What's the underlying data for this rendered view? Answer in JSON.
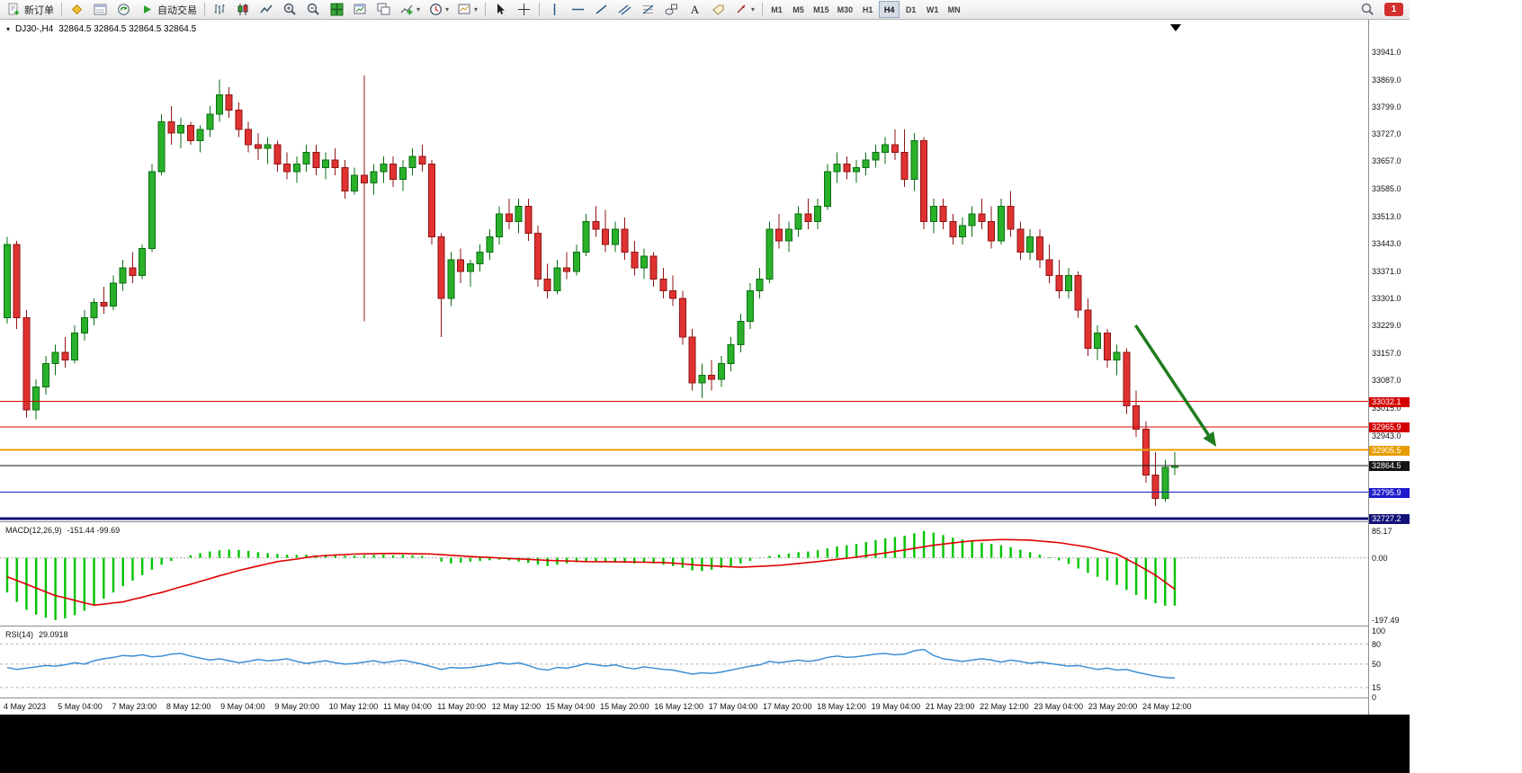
{
  "toolbar": {
    "new_order": "新订单",
    "autotrade": "自动交易",
    "timeframes": [
      "M1",
      "M5",
      "M15",
      "M30",
      "H1",
      "H4",
      "D1",
      "W1",
      "MN"
    ],
    "active_timeframe": "H4",
    "notification_count": "1",
    "icons": [
      "new-order",
      "market-watch",
      "data-window",
      "navigator",
      "autotrade",
      "bar-chart",
      "candle-chart",
      "line-chart",
      "zoom-in",
      "zoom-out",
      "tile-windows",
      "new-chart",
      "profiles",
      "indicators",
      "periods",
      "templates",
      "cursor",
      "crosshair",
      "vertical-line",
      "horizontal-line",
      "trendline",
      "channel",
      "fibonacci",
      "shapes",
      "text",
      "text-label",
      "arrows",
      "search",
      "notifications"
    ]
  },
  "chart": {
    "title_symbol": "DJ30-,H4",
    "title_ohlc": "32864.5 32864.5 32864.5 32864.5"
  },
  "colors": {
    "bull": "#29b129",
    "bull_stroke": "#0c6e14",
    "bear": "#e03232",
    "bear_stroke": "#8f1414",
    "macd_hist": "#00c400",
    "macd_signal": "#e00000",
    "rsi_line": "#3d8fd6"
  },
  "chart_data": [
    {
      "type": "candlestick",
      "symbol_timeframe": "DJ30-,H4",
      "current_price": 32864.5,
      "price_axis": {
        "min": 32720,
        "max": 34025,
        "ticks": [
          33941.0,
          33869.0,
          33799.0,
          33727.0,
          33657.0,
          33585.0,
          33513.0,
          33443.0,
          33371.0,
          33301.0,
          33229.0,
          33157.0,
          33087.0,
          33015.0,
          32943.0
        ]
      },
      "hlines": [
        {
          "price": 33032.1,
          "color": "#d40000",
          "width": 1
        },
        {
          "price": 32965.9,
          "color": "#d40000",
          "width": 1
        },
        {
          "price": 32905.5,
          "color": "#e89c00",
          "width": 2
        },
        {
          "price": 32864.5,
          "color": "#151515",
          "width": 1
        },
        {
          "price": 32795.9,
          "color": "#1c1ccc",
          "width": 1
        },
        {
          "price": 32727.2,
          "color": "#12127a",
          "width": 3
        }
      ],
      "arrow": {
        "x1_frac": 0.83,
        "y1_price": 33230,
        "x2_frac": 0.889,
        "y2_price": 32914,
        "color": "#1e7d1e"
      },
      "x_labels": [
        "4 May 2023",
        "5 May 04:00",
        "7 May 23:00",
        "8 May 12:00",
        "9 May 04:00",
        "9 May 20:00",
        "10 May 12:00",
        "11 May 04:00",
        "11 May 20:00",
        "12 May 12:00",
        "15 May 04:00",
        "15 May 20:00",
        "16 May 12:00",
        "17 May 04:00",
        "17 May 20:00",
        "18 May 12:00",
        "19 May 04:00",
        "21 May 23:00",
        "22 May 12:00",
        "23 May 04:00",
        "23 May 20:00",
        "24 May 12:00"
      ],
      "candles": [
        [
          33250,
          33460,
          33235,
          33440
        ],
        [
          33440,
          33450,
          33220,
          33250
        ],
        [
          33250,
          33270,
          32990,
          33010
        ],
        [
          33010,
          33090,
          32985,
          33070
        ],
        [
          33070,
          33150,
          33050,
          33130
        ],
        [
          33130,
          33180,
          33100,
          33160
        ],
        [
          33160,
          33200,
          33120,
          33140
        ],
        [
          33140,
          33230,
          33130,
          33210
        ],
        [
          33210,
          33270,
          33190,
          33250
        ],
        [
          33250,
          33300,
          33230,
          33290
        ],
        [
          33290,
          33330,
          33260,
          33280
        ],
        [
          33280,
          33360,
          33270,
          33340
        ],
        [
          33340,
          33400,
          33320,
          33380
        ],
        [
          33380,
          33420,
          33340,
          33360
        ],
        [
          33360,
          33440,
          33350,
          33430
        ],
        [
          33430,
          33650,
          33420,
          33630
        ],
        [
          33630,
          33780,
          33620,
          33760
        ],
        [
          33760,
          33800,
          33700,
          33730
        ],
        [
          33730,
          33770,
          33690,
          33750
        ],
        [
          33750,
          33760,
          33700,
          33710
        ],
        [
          33710,
          33750,
          33680,
          33740
        ],
        [
          33740,
          33800,
          33720,
          33780
        ],
        [
          33780,
          33869,
          33760,
          33830
        ],
        [
          33830,
          33850,
          33770,
          33790
        ],
        [
          33790,
          33810,
          33720,
          33740
        ],
        [
          33740,
          33760,
          33680,
          33700
        ],
        [
          33700,
          33730,
          33660,
          33690
        ],
        [
          33690,
          33720,
          33650,
          33700
        ],
        [
          33700,
          33710,
          33630,
          33650
        ],
        [
          33650,
          33680,
          33610,
          33630
        ],
        [
          33630,
          33670,
          33600,
          33650
        ],
        [
          33650,
          33700,
          33630,
          33680
        ],
        [
          33680,
          33700,
          33620,
          33640
        ],
        [
          33640,
          33680,
          33610,
          33660
        ],
        [
          33660,
          33690,
          33620,
          33640
        ],
        [
          33640,
          33660,
          33560,
          33580
        ],
        [
          33580,
          33640,
          33570,
          33620
        ],
        [
          33620,
          33880,
          33240,
          33600
        ],
        [
          33600,
          33650,
          33570,
          33630
        ],
        [
          33630,
          33670,
          33600,
          33650
        ],
        [
          33650,
          33670,
          33590,
          33610
        ],
        [
          33610,
          33660,
          33580,
          33640
        ],
        [
          33640,
          33690,
          33620,
          33670
        ],
        [
          33670,
          33700,
          33630,
          33650
        ],
        [
          33650,
          33660,
          33440,
          33460
        ],
        [
          33460,
          33470,
          33200,
          33300
        ],
        [
          33300,
          33420,
          33280,
          33400
        ],
        [
          33400,
          33430,
          33340,
          33370
        ],
        [
          33370,
          33400,
          33330,
          33390
        ],
        [
          33390,
          33440,
          33370,
          33420
        ],
        [
          33420,
          33480,
          33400,
          33460
        ],
        [
          33460,
          33540,
          33440,
          33520
        ],
        [
          33520,
          33560,
          33480,
          33500
        ],
        [
          33500,
          33560,
          33470,
          33540
        ],
        [
          33540,
          33560,
          33450,
          33470
        ],
        [
          33470,
          33490,
          33330,
          33350
        ],
        [
          33350,
          33390,
          33300,
          33320
        ],
        [
          33320,
          33400,
          33310,
          33380
        ],
        [
          33380,
          33420,
          33350,
          33370
        ],
        [
          33370,
          33440,
          33360,
          33420
        ],
        [
          33420,
          33520,
          33410,
          33500
        ],
        [
          33500,
          33540,
          33460,
          33480
        ],
        [
          33480,
          33530,
          33420,
          33440
        ],
        [
          33440,
          33500,
          33420,
          33480
        ],
        [
          33480,
          33510,
          33400,
          33420
        ],
        [
          33420,
          33450,
          33360,
          33380
        ],
        [
          33380,
          33430,
          33350,
          33410
        ],
        [
          33410,
          33420,
          33330,
          33350
        ],
        [
          33350,
          33380,
          33300,
          33320
        ],
        [
          33320,
          33360,
          33280,
          33300
        ],
        [
          33300,
          33320,
          33180,
          33200
        ],
        [
          33200,
          33220,
          33060,
          33080
        ],
        [
          33080,
          33130,
          33040,
          33100
        ],
        [
          33100,
          33140,
          33060,
          33090
        ],
        [
          33090,
          33150,
          33070,
          33130
        ],
        [
          33130,
          33200,
          33110,
          33180
        ],
        [
          33180,
          33260,
          33160,
          33240
        ],
        [
          33240,
          33340,
          33220,
          33320
        ],
        [
          33320,
          33380,
          33300,
          33350
        ],
        [
          33350,
          33500,
          33340,
          33480
        ],
        [
          33480,
          33520,
          33430,
          33450
        ],
        [
          33450,
          33500,
          33420,
          33480
        ],
        [
          33480,
          33540,
          33460,
          33520
        ],
        [
          33520,
          33560,
          33480,
          33500
        ],
        [
          33500,
          33560,
          33480,
          33540
        ],
        [
          33540,
          33650,
          33530,
          33630
        ],
        [
          33630,
          33680,
          33600,
          33650
        ],
        [
          33650,
          33670,
          33610,
          33630
        ],
        [
          33630,
          33660,
          33600,
          33640
        ],
        [
          33640,
          33680,
          33620,
          33660
        ],
        [
          33660,
          33700,
          33640,
          33680
        ],
        [
          33680,
          33720,
          33650,
          33700
        ],
        [
          33700,
          33740,
          33660,
          33680
        ],
        [
          33680,
          33740,
          33590,
          33610
        ],
        [
          33610,
          33730,
          33580,
          33710
        ],
        [
          33710,
          33720,
          33480,
          33500
        ],
        [
          33500,
          33560,
          33470,
          33540
        ],
        [
          33540,
          33560,
          33480,
          33500
        ],
        [
          33500,
          33520,
          33440,
          33460
        ],
        [
          33460,
          33510,
          33440,
          33490
        ],
        [
          33490,
          33540,
          33460,
          33520
        ],
        [
          33520,
          33560,
          33480,
          33500
        ],
        [
          33500,
          33540,
          33430,
          33450
        ],
        [
          33450,
          33560,
          33440,
          33540
        ],
        [
          33540,
          33580,
          33460,
          33480
        ],
        [
          33480,
          33500,
          33400,
          33420
        ],
        [
          33420,
          33480,
          33400,
          33460
        ],
        [
          33460,
          33480,
          33380,
          33400
        ],
        [
          33400,
          33440,
          33340,
          33360
        ],
        [
          33360,
          33400,
          33300,
          33320
        ],
        [
          33320,
          33380,
          33300,
          33360
        ],
        [
          33360,
          33370,
          33250,
          33270
        ],
        [
          33270,
          33300,
          33150,
          33170
        ],
        [
          33170,
          33230,
          33140,
          33210
        ],
        [
          33210,
          33220,
          33120,
          33140
        ],
        [
          33140,
          33180,
          33100,
          33160
        ],
        [
          33160,
          33170,
          33000,
          33020
        ],
        [
          33020,
          33060,
          32940,
          32960
        ],
        [
          32960,
          32980,
          32820,
          32840
        ],
        [
          32840,
          32900,
          32760,
          32780
        ],
        [
          32780,
          32880,
          32770,
          32860
        ],
        [
          32860,
          32900,
          32840,
          32864.5
        ]
      ]
    },
    {
      "type": "bar+line",
      "name": "MACD(12,26,9)",
      "current_values": "-151.44 -99.69",
      "scale_ticks": [
        85.17,
        0,
        -197.49
      ],
      "range": {
        "min": -215,
        "max": 110
      },
      "histogram": [
        -110,
        -140,
        -165,
        -180,
        -190,
        -197.49,
        -192,
        -182,
        -168,
        -150,
        -130,
        -110,
        -90,
        -72,
        -55,
        -38,
        -22,
        -10,
        0,
        8,
        15,
        20,
        24,
        26,
        25,
        22,
        18,
        15,
        12,
        10,
        9,
        10,
        8,
        10,
        9,
        6,
        7,
        8,
        9,
        10,
        8,
        9,
        8,
        6,
        0,
        -12,
        -18,
        -15,
        -12,
        -10,
        -8,
        -6,
        -8,
        -12,
        -16,
        -22,
        -26,
        -22,
        -18,
        -14,
        -10,
        -10,
        -14,
        -14,
        -16,
        -18,
        -14,
        -18,
        -22,
        -26,
        -32,
        -40,
        -42,
        -38,
        -32,
        -26,
        -18,
        -10,
        -2,
        6,
        10,
        14,
        18,
        20,
        24,
        30,
        36,
        40,
        44,
        50,
        56,
        62,
        66,
        70,
        78,
        85.17,
        80,
        72,
        64,
        58,
        52,
        48,
        44,
        40,
        34,
        26,
        18,
        10,
        2,
        -8,
        -20,
        -34,
        -48,
        -60,
        -72,
        -86,
        -102,
        -118,
        -132,
        -144,
        -152,
        -151.44
      ],
      "signal": [
        -60,
        -72,
        -84,
        -96,
        -108,
        -120,
        -127,
        -135,
        -143,
        -150,
        -147,
        -143,
        -140,
        -132,
        -125,
        -117,
        -110,
        -101,
        -92,
        -84,
        -75,
        -66,
        -57,
        -49,
        -40,
        -33,
        -26,
        -19,
        -12,
        -8,
        -4,
        1,
        5,
        7,
        9,
        10,
        12,
        12.5,
        13,
        13.5,
        14,
        13.5,
        13,
        12.5,
        12,
        10,
        8,
        6,
        4,
        2.5,
        1,
        -0.5,
        -2,
        -3.5,
        -5,
        -6.5,
        -8,
        -9,
        -10,
        -11,
        -12,
        -12.3,
        -12.5,
        -12.8,
        -13,
        -13.5,
        -14,
        -14.5,
        -15,
        -17,
        -19,
        -22,
        -24,
        -25.5,
        -27,
        -28.5,
        -30,
        -28.5,
        -27,
        -25.5,
        -24,
        -21,
        -18,
        -15,
        -12,
        -8.5,
        -5,
        -1.5,
        2,
        6.5,
        11,
        15.5,
        20,
        25,
        30,
        35,
        40,
        43.5,
        47,
        50.5,
        54,
        55.3,
        56.7,
        58,
        57.3,
        56.7,
        56,
        53.3,
        50.7,
        48,
        43.3,
        38.7,
        34,
        26.7,
        19.3,
        12,
        -4,
        -20,
        -37.5,
        -55,
        -77,
        -99.69
      ]
    },
    {
      "type": "line",
      "name": "RSI(14)",
      "current_value": "29.0918",
      "scale_ticks": [
        100,
        80,
        50,
        15,
        0
      ],
      "levels": [
        80,
        50,
        15
      ],
      "range": {
        "min": 0,
        "max": 105
      },
      "values": [
        45,
        42,
        44,
        46,
        48,
        47,
        49,
        52,
        50,
        55,
        58,
        60,
        63,
        62,
        64,
        61,
        62,
        65,
        66,
        62,
        59,
        56,
        58,
        55,
        52,
        54,
        57,
        55,
        56,
        58,
        54,
        51,
        53,
        55,
        52,
        50,
        51,
        53,
        55,
        52,
        54,
        56,
        53,
        50,
        46,
        42,
        45,
        44,
        45,
        47,
        49,
        52,
        50,
        52,
        48,
        43,
        41,
        45,
        44,
        47,
        51,
        49,
        47,
        49,
        45,
        43,
        46,
        44,
        42,
        41,
        38,
        35,
        37,
        36,
        38,
        41,
        44,
        47,
        49,
        54,
        52,
        54,
        56,
        54,
        56,
        60,
        62,
        60,
        61,
        63,
        65,
        66,
        64,
        65,
        70,
        72,
        63,
        58,
        56,
        54,
        56,
        58,
        56,
        53,
        56,
        54,
        51,
        53,
        51,
        49,
        47,
        48,
        45,
        42,
        44,
        41,
        42,
        38,
        35,
        32,
        30,
        29.09
      ]
    }
  ]
}
